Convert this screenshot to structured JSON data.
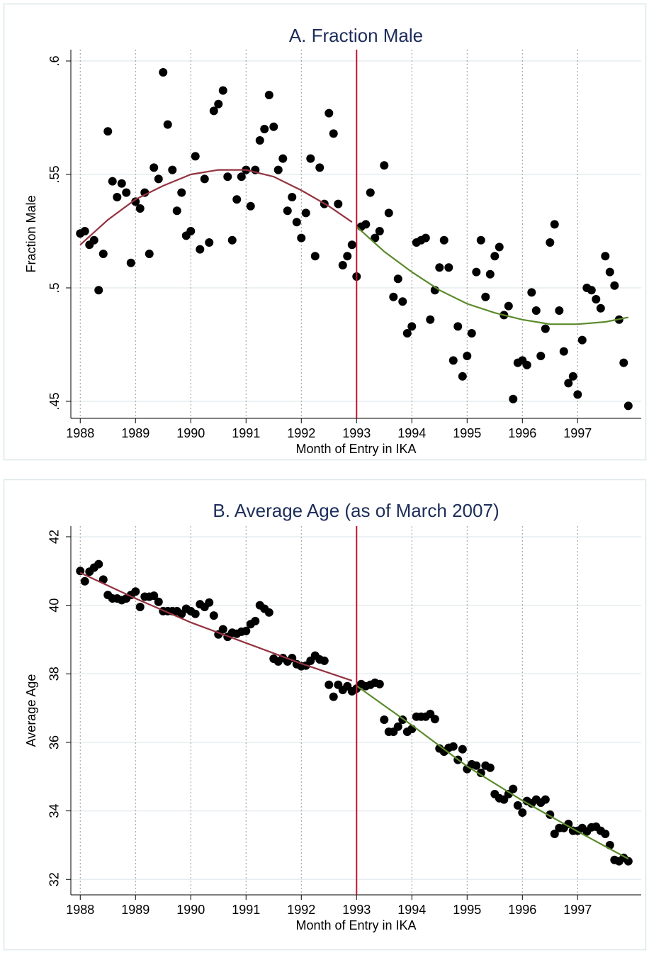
{
  "chart_data": [
    {
      "type": "scatter",
      "title": "A. Fraction Male",
      "x_label": "Month of Entry in IKA",
      "y_label": "Fraction Male",
      "xlim": [
        1987.83,
        1998.15
      ],
      "xticks": [
        1988,
        1989,
        1990,
        1991,
        1992,
        1993,
        1994,
        1995,
        1996,
        1997
      ],
      "ylim": [
        0.4425,
        0.605
      ],
      "yticks": [
        {
          "value": 0.45,
          "label": ".45"
        },
        {
          "value": 0.5,
          "label": ".5"
        },
        {
          "value": 0.55,
          "label": ".55"
        },
        {
          "value": 0.6,
          "label": ".6"
        }
      ],
      "grid": true,
      "vline": 1993,
      "vline_color": "#c8102e",
      "series": [
        {
          "type": "scatter",
          "color": "#000000",
          "x": [
            1988,
            1988.083,
            1988.167,
            1988.25,
            1988.333,
            1988.417,
            1988.5,
            1988.583,
            1988.667,
            1988.75,
            1988.833,
            1988.917,
            1989,
            1989.083,
            1989.167,
            1989.25,
            1989.333,
            1989.417,
            1989.5,
            1989.583,
            1989.667,
            1989.75,
            1989.833,
            1989.917,
            1990,
            1990.083,
            1990.167,
            1990.25,
            1990.333,
            1990.417,
            1990.5,
            1990.583,
            1990.667,
            1990.75,
            1990.833,
            1990.917,
            1991,
            1991.083,
            1991.167,
            1991.25,
            1991.333,
            1991.417,
            1991.5,
            1991.583,
            1991.667,
            1991.75,
            1991.833,
            1991.917,
            1992,
            1992.083,
            1992.167,
            1992.25,
            1992.333,
            1992.417,
            1992.5,
            1992.583,
            1992.667,
            1992.75,
            1992.833,
            1992.917,
            1993,
            1993.083,
            1993.167,
            1993.25,
            1993.333,
            1993.417,
            1993.5,
            1993.583,
            1993.667,
            1993.75,
            1993.833,
            1993.917,
            1994,
            1994.083,
            1994.167,
            1994.25,
            1994.333,
            1994.417,
            1994.5,
            1994.583,
            1994.667,
            1994.75,
            1994.833,
            1994.917,
            1995,
            1995.083,
            1995.167,
            1995.25,
            1995.333,
            1995.417,
            1995.5,
            1995.583,
            1995.667,
            1995.75,
            1995.833,
            1995.917,
            1996,
            1996.083,
            1996.167,
            1996.25,
            1996.333,
            1996.417,
            1996.5,
            1996.583,
            1996.667,
            1996.75,
            1996.833,
            1996.917,
            1997,
            1997.083,
            1997.167,
            1997.25,
            1997.333,
            1997.417,
            1997.5,
            1997.583,
            1997.667,
            1997.75,
            1997.833,
            1997.917
          ],
          "values": [
            0.524,
            0.525,
            0.519,
            0.521,
            0.499,
            0.515,
            0.569,
            0.547,
            0.54,
            0.546,
            0.542,
            0.511,
            0.538,
            0.535,
            0.542,
            0.515,
            0.553,
            0.548,
            0.595,
            0.572,
            0.552,
            0.534,
            0.542,
            0.523,
            0.525,
            0.558,
            0.517,
            0.548,
            0.52,
            0.578,
            0.581,
            0.587,
            0.549,
            0.521,
            0.539,
            0.549,
            0.552,
            0.536,
            0.552,
            0.565,
            0.57,
            0.585,
            0.571,
            0.552,
            0.557,
            0.534,
            0.54,
            0.529,
            0.522,
            0.533,
            0.557,
            0.514,
            0.553,
            0.537,
            0.577,
            0.568,
            0.537,
            0.51,
            0.514,
            0.519,
            0.505,
            0.527,
            0.528,
            0.542,
            0.522,
            0.525,
            0.554,
            0.533,
            0.496,
            0.504,
            0.494,
            0.48,
            0.483,
            0.52,
            0.521,
            0.522,
            0.486,
            0.499,
            0.509,
            0.521,
            0.509,
            0.468,
            0.483,
            0.461,
            0.47,
            0.48,
            0.507,
            0.521,
            0.496,
            0.506,
            0.514,
            0.518,
            0.488,
            0.492,
            0.451,
            0.467,
            0.468,
            0.466,
            0.498,
            0.49,
            0.47,
            0.482,
            0.52,
            0.528,
            0.49,
            0.472,
            0.458,
            0.461,
            0.453,
            0.477,
            0.5,
            0.499,
            0.495,
            0.491,
            0.514,
            0.507,
            0.501,
            0.486,
            0.467,
            0.448
          ]
        },
        {
          "type": "line",
          "color": "#943340",
          "x": [
            1988,
            1988.5,
            1989,
            1989.5,
            1990,
            1990.5,
            1991,
            1991.5,
            1992,
            1992.5,
            1992.917
          ],
          "values": [
            0.519,
            0.53,
            0.539,
            0.545,
            0.55,
            0.552,
            0.552,
            0.549,
            0.543,
            0.536,
            0.529
          ]
        },
        {
          "type": "line",
          "color": "#5b8a2b",
          "x": [
            1993,
            1993.5,
            1994,
            1994.5,
            1995,
            1995.5,
            1996,
            1996.5,
            1997,
            1997.5,
            1997.917
          ],
          "values": [
            0.527,
            0.516,
            0.507,
            0.499,
            0.493,
            0.489,
            0.486,
            0.484,
            0.484,
            0.485,
            0.487
          ]
        }
      ]
    },
    {
      "type": "scatter",
      "title": "B. Average Age (as of March 2007)",
      "x_label": "Month of Entry in IKA",
      "y_label": "Average Age",
      "xlim": [
        1987.83,
        1998.15
      ],
      "xticks": [
        1988,
        1989,
        1990,
        1991,
        1992,
        1993,
        1994,
        1995,
        1996,
        1997
      ],
      "ylim": [
        31.55,
        42.31
      ],
      "yticks": [
        32,
        34,
        36,
        38,
        40,
        42
      ],
      "grid": true,
      "vline": 1993,
      "vline_color": "#c8102e",
      "series": [
        {
          "type": "scatter",
          "color": "#000000",
          "x": [
            1988,
            1988.083,
            1988.167,
            1988.25,
            1988.333,
            1988.417,
            1988.5,
            1988.583,
            1988.667,
            1988.75,
            1988.833,
            1988.917,
            1989,
            1989.083,
            1989.167,
            1989.25,
            1989.333,
            1989.417,
            1989.5,
            1989.583,
            1989.667,
            1989.75,
            1989.833,
            1989.917,
            1990,
            1990.083,
            1990.167,
            1990.25,
            1990.333,
            1990.417,
            1990.5,
            1990.583,
            1990.667,
            1990.75,
            1990.833,
            1990.917,
            1991,
            1991.083,
            1991.167,
            1991.25,
            1991.333,
            1991.417,
            1991.5,
            1991.583,
            1991.667,
            1991.75,
            1991.833,
            1991.917,
            1992,
            1992.083,
            1992.167,
            1992.25,
            1992.333,
            1992.417,
            1992.5,
            1992.583,
            1992.667,
            1992.75,
            1992.833,
            1992.917,
            1993,
            1993.083,
            1993.167,
            1993.25,
            1993.333,
            1993.417,
            1993.5,
            1993.583,
            1993.667,
            1993.75,
            1993.833,
            1993.917,
            1994,
            1994.083,
            1994.167,
            1994.25,
            1994.333,
            1994.417,
            1994.5,
            1994.583,
            1994.667,
            1994.75,
            1994.833,
            1994.917,
            1995,
            1995.083,
            1995.167,
            1995.25,
            1995.333,
            1995.417,
            1995.5,
            1995.583,
            1995.667,
            1995.75,
            1995.833,
            1995.917,
            1996,
            1996.083,
            1996.167,
            1996.25,
            1996.333,
            1996.417,
            1996.5,
            1996.583,
            1996.667,
            1996.75,
            1996.833,
            1996.917,
            1997,
            1997.083,
            1997.167,
            1997.25,
            1997.333,
            1997.417,
            1997.5,
            1997.583,
            1997.667,
            1997.75,
            1997.833,
            1997.917
          ],
          "values": [
            41.0,
            40.7,
            40.98,
            41.1,
            41.2,
            40.75,
            40.3,
            40.2,
            40.2,
            40.15,
            40.2,
            40.3,
            40.4,
            39.95,
            40.25,
            40.25,
            40.28,
            40.1,
            39.83,
            39.83,
            39.83,
            39.83,
            39.75,
            39.9,
            39.83,
            39.75,
            40.03,
            39.95,
            40.08,
            39.7,
            39.15,
            39.3,
            39.08,
            39.2,
            39.17,
            39.23,
            39.25,
            39.45,
            39.54,
            40.0,
            39.9,
            39.79,
            38.44,
            38.36,
            38.46,
            38.36,
            38.46,
            38.28,
            38.22,
            38.24,
            38.38,
            38.53,
            38.42,
            38.38,
            37.68,
            37.33,
            37.68,
            37.53,
            37.64,
            37.49,
            37.57,
            37.7,
            37.64,
            37.68,
            37.74,
            37.7,
            36.66,
            36.31,
            36.31,
            36.46,
            36.66,
            36.31,
            36.39,
            36.75,
            36.75,
            36.75,
            36.83,
            36.68,
            35.82,
            35.73,
            35.84,
            35.88,
            35.49,
            35.8,
            35.22,
            35.36,
            35.32,
            35.11,
            35.32,
            35.26,
            34.49,
            34.37,
            34.33,
            34.49,
            34.64,
            34.16,
            33.95,
            34.29,
            34.22,
            34.33,
            34.24,
            34.33,
            33.89,
            33.33,
            33.5,
            33.5,
            33.62,
            33.42,
            33.42,
            33.5,
            33.4,
            33.52,
            33.54,
            33.42,
            33.33,
            33.0,
            32.57,
            32.53,
            32.63,
            32.53
          ]
        },
        {
          "type": "line",
          "color": "#943340",
          "x": [
            1988,
            1989,
            1990,
            1991,
            1992,
            1992.917
          ],
          "values": [
            40.95,
            40.2,
            39.5,
            38.9,
            38.3,
            37.8
          ]
        },
        {
          "type": "line",
          "color": "#5b8a2b",
          "x": [
            1993,
            1994,
            1995,
            1996,
            1997,
            1997.917
          ],
          "values": [
            37.65,
            36.5,
            35.3,
            34.3,
            33.4,
            32.6
          ]
        }
      ]
    }
  ]
}
